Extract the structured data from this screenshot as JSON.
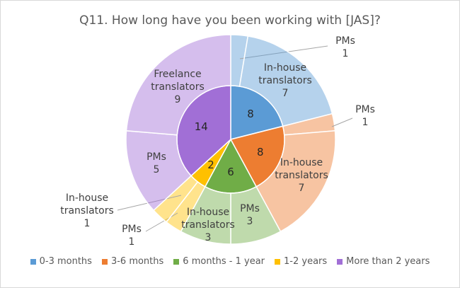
{
  "chart_data": {
    "type": "sunburst",
    "title": "Q11. How long have you been working with [JAS]?",
    "series": [
      {
        "name": "0-3 months",
        "color": "#5b9bd5",
        "value": 8,
        "children": [
          {
            "name": "PMs",
            "value": 1
          },
          {
            "name": "In-house translators",
            "value": 7
          }
        ]
      },
      {
        "name": "3-6 months",
        "color": "#ed7d31",
        "value": 8,
        "children": [
          {
            "name": "PMs",
            "value": 1
          },
          {
            "name": "In-house translators",
            "value": 7
          }
        ]
      },
      {
        "name": "6 months - 1 year",
        "color": "#70ad47",
        "value": 6,
        "children": [
          {
            "name": "PMs",
            "value": 3
          },
          {
            "name": "In-house translators",
            "value": 3
          }
        ]
      },
      {
        "name": "1-2 years",
        "color": "#ffc000",
        "value": 2,
        "children": [
          {
            "name": "PMs",
            "value": 1
          },
          {
            "name": "In-house translators",
            "value": 1
          }
        ]
      },
      {
        "name": "More than 2 years",
        "color": "#a16fd6",
        "value": 14,
        "children": [
          {
            "name": "PMs",
            "value": 5
          },
          {
            "name": "Freelance translators",
            "value": 9
          }
        ]
      }
    ],
    "legend": "bottom"
  }
}
